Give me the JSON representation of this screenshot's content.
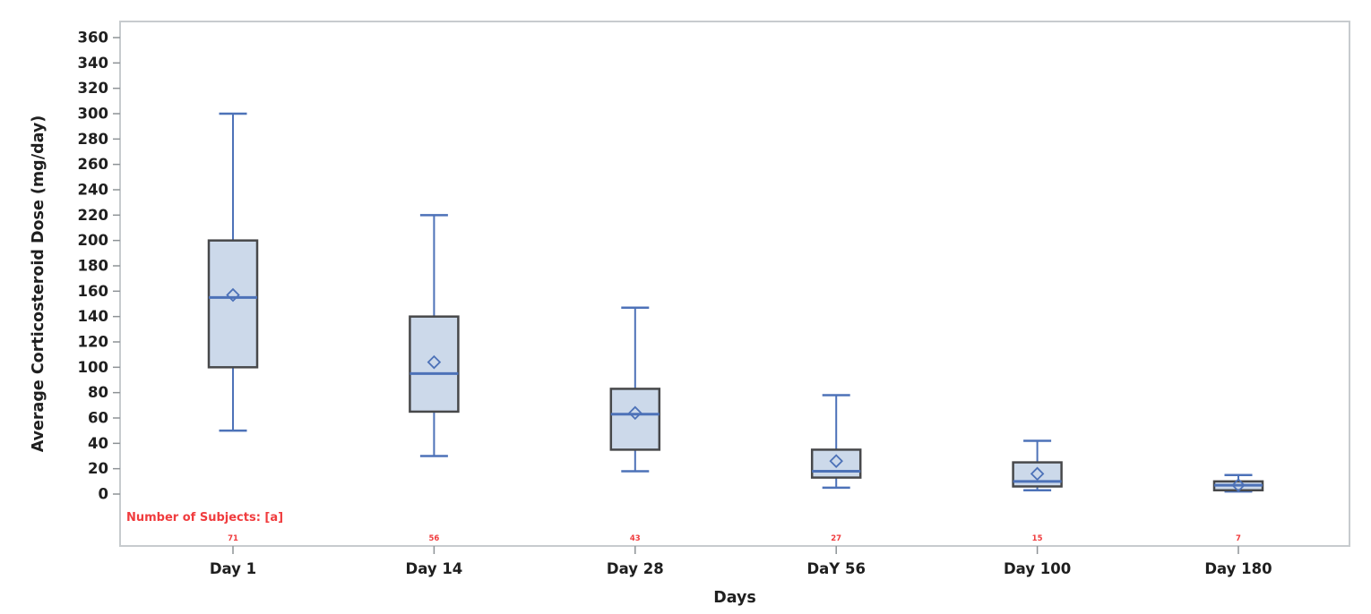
{
  "chart_data": {
    "type": "boxplot",
    "title": "",
    "xlabel": "Days",
    "ylabel": "Average Corticosteroid Dose (mg/day)",
    "ylim": [
      0,
      360
    ],
    "ytick_step": 20,
    "grid": false,
    "legend": "none",
    "annotation": {
      "text": "Number of Subjects: [a]"
    },
    "categories": [
      "Day 1",
      "Day 14",
      "Day 28",
      "DaY 56",
      "Day 100",
      "Day 180"
    ],
    "n_subjects": [
      "71",
      "56",
      "43",
      "27",
      "15",
      "7"
    ],
    "series": [
      {
        "category": "Day 1",
        "min": 50,
        "q1": 100,
        "median": 155,
        "mean": 157,
        "q3": 200,
        "max": 300
      },
      {
        "category": "Day 14",
        "min": 30,
        "q1": 65,
        "median": 95,
        "mean": 104,
        "q3": 140,
        "max": 220
      },
      {
        "category": "Day 28",
        "min": 18,
        "q1": 35,
        "median": 63,
        "mean": 64,
        "q3": 83,
        "max": 147
      },
      {
        "category": "DaY 56",
        "min": 5,
        "q1": 13,
        "median": 18,
        "mean": 26,
        "q3": 35,
        "max": 78
      },
      {
        "category": "Day 100",
        "min": 3,
        "q1": 6,
        "median": 10,
        "mean": 16,
        "q3": 25,
        "max": 42
      },
      {
        "category": "Day 180",
        "min": 2,
        "q1": 3,
        "median": 7,
        "mean": 7,
        "q3": 10,
        "max": 15
      }
    ],
    "colors": {
      "box_fill": "#ccd9ea",
      "box_border": "#47484a",
      "line_blue": "#4d72b8",
      "red": "#f03c3e",
      "frame": "#c7cbce",
      "tick": "#8d9296",
      "text": "#1f1f1f"
    }
  }
}
